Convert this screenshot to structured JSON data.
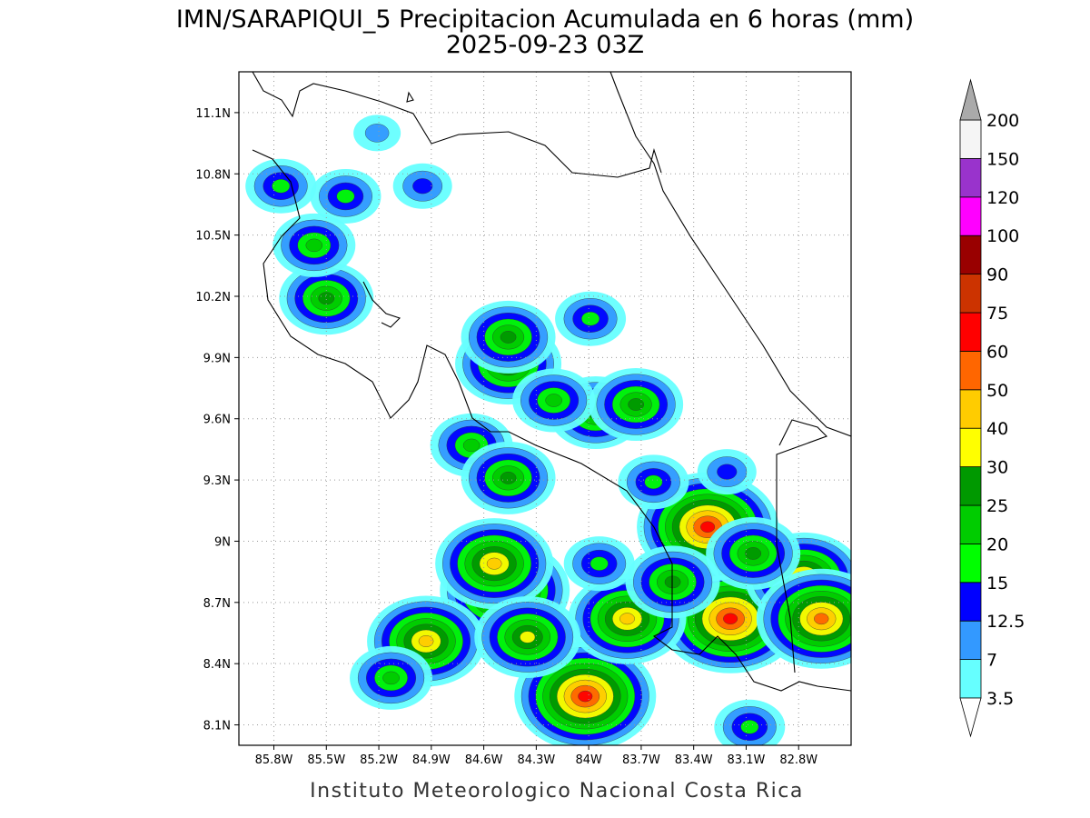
{
  "title": "IMN/SARAPIQUI_5 Precipitacion Acumulada en 6 horas (mm)",
  "subtitle": "2025-09-23 03Z",
  "footer": "Instituto Meteorologico Nacional Costa Rica",
  "map": {
    "xlim": [
      -86.0,
      -82.5
    ],
    "ylim": [
      8.0,
      11.3
    ],
    "grid": true,
    "xticks": [
      {
        "value": -85.8,
        "label": "85.8W"
      },
      {
        "value": -85.5,
        "label": "85.5W"
      },
      {
        "value": -85.2,
        "label": "85.2W"
      },
      {
        "value": -84.9,
        "label": "84.9W"
      },
      {
        "value": -84.6,
        "label": "84.6W"
      },
      {
        "value": -84.3,
        "label": "84.3W"
      },
      {
        "value": -84.0,
        "label": "84W"
      },
      {
        "value": -83.7,
        "label": "83.7W"
      },
      {
        "value": -83.4,
        "label": "83.4W"
      },
      {
        "value": -83.1,
        "label": "83.1W"
      },
      {
        "value": -82.8,
        "label": "82.8W"
      }
    ],
    "yticks": [
      {
        "value": 8.1,
        "label": "8.1N"
      },
      {
        "value": 8.4,
        "label": "8.4N"
      },
      {
        "value": 8.7,
        "label": "8.7N"
      },
      {
        "value": 9.0,
        "label": "9N"
      },
      {
        "value": 9.3,
        "label": "9.3N"
      },
      {
        "value": 9.6,
        "label": "9.6N"
      },
      {
        "value": 9.9,
        "label": "9.9N"
      },
      {
        "value": 10.2,
        "label": "10.2N"
      },
      {
        "value": 10.5,
        "label": "10.5N"
      },
      {
        "value": 10.8,
        "label": "10.8N"
      },
      {
        "value": 11.1,
        "label": "11.1N"
      }
    ]
  },
  "colorbar": {
    "levels": [
      3.5,
      7,
      12.5,
      15,
      20,
      25,
      30,
      40,
      50,
      60,
      75,
      90,
      100,
      120,
      150,
      200
    ],
    "colors": [
      "#66ffff",
      "#3399ff",
      "#0000ff",
      "#00ff00",
      "#00cc00",
      "#009900",
      "#ffff00",
      "#ffcc00",
      "#ff6600",
      "#ff0000",
      "#cc3300",
      "#990000",
      "#ff00ff",
      "#9933cc",
      "#f5f5f5"
    ],
    "over_color": "#aaaaaa",
    "under_color": "#ffffff"
  },
  "cells": [
    {
      "lon": -84.02,
      "lat": 8.24,
      "value": 60
    },
    {
      "lon": -83.19,
      "lat": 8.62,
      "value": 60
    },
    {
      "lon": -83.32,
      "lat": 9.07,
      "value": 60
    },
    {
      "lon": -82.77,
      "lat": 8.82,
      "value": 45
    },
    {
      "lon": -82.67,
      "lat": 8.62,
      "value": 50
    },
    {
      "lon": -84.48,
      "lat": 8.76,
      "value": 50
    },
    {
      "lon": -84.54,
      "lat": 8.89,
      "value": 40
    },
    {
      "lon": -84.93,
      "lat": 8.51,
      "value": 45
    },
    {
      "lon": -83.78,
      "lat": 8.62,
      "value": 40
    },
    {
      "lon": -84.35,
      "lat": 8.53,
      "value": 35
    },
    {
      "lon": -84.46,
      "lat": 9.87,
      "value": 35
    },
    {
      "lon": -84.46,
      "lat": 10.0,
      "value": 25
    },
    {
      "lon": -83.96,
      "lat": 9.63,
      "value": 25
    },
    {
      "lon": -83.73,
      "lat": 9.67,
      "value": 28
    },
    {
      "lon": -84.2,
      "lat": 9.69,
      "value": 22
    },
    {
      "lon": -84.67,
      "lat": 9.47,
      "value": 22
    },
    {
      "lon": -84.46,
      "lat": 9.31,
      "value": 28
    },
    {
      "lon": -85.5,
      "lat": 10.19,
      "value": 25
    },
    {
      "lon": -85.57,
      "lat": 10.45,
      "value": 22
    },
    {
      "lon": -83.06,
      "lat": 8.94,
      "value": 28
    },
    {
      "lon": -83.52,
      "lat": 8.8,
      "value": 25
    },
    {
      "lon": -83.94,
      "lat": 8.89,
      "value": 18
    },
    {
      "lon": -85.13,
      "lat": 8.33,
      "value": 20
    },
    {
      "lon": -85.39,
      "lat": 10.69,
      "value": 18
    },
    {
      "lon": -84.95,
      "lat": 10.74,
      "value": 14
    },
    {
      "lon": -85.76,
      "lat": 10.74,
      "value": 16
    },
    {
      "lon": -85.21,
      "lat": 11.0,
      "value": 10
    },
    {
      "lon": -83.08,
      "lat": 8.09,
      "value": 18
    },
    {
      "lon": -83.63,
      "lat": 9.29,
      "value": 15
    },
    {
      "lon": -83.21,
      "lat": 9.34,
      "value": 14
    },
    {
      "lon": -83.99,
      "lat": 10.09,
      "value": 16
    }
  ]
}
